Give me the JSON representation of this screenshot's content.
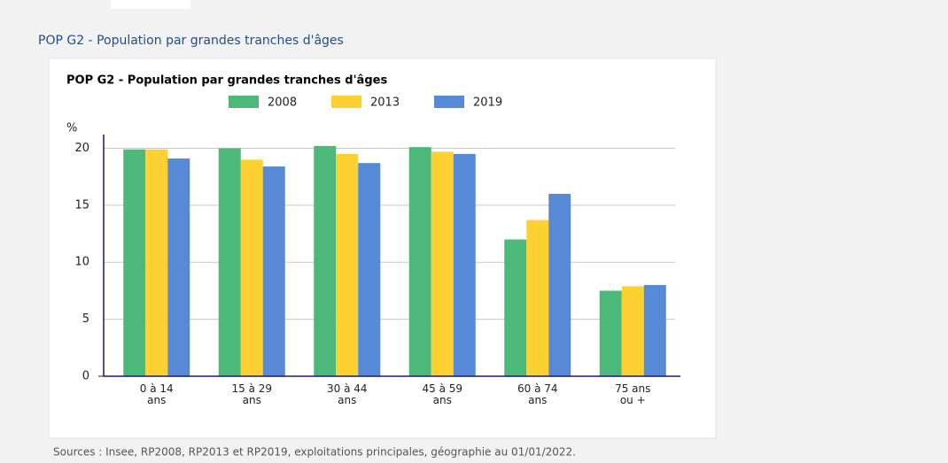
{
  "section_title": "POP G2 - Population par grandes tranches d'âges",
  "source": "Sources : Insee, RP2008, RP2013 et RP2019, exploitations principales, géographie au 01/01/2022.",
  "chart_data": {
    "type": "bar",
    "title": "POP G2 - Population par grandes tranches d'âges",
    "y_label": "%",
    "categories": [
      [
        "0 à 14",
        "ans"
      ],
      [
        "15 à 29",
        "ans"
      ],
      [
        "30 à 44",
        "ans"
      ],
      [
        "45 à 59",
        "ans"
      ],
      [
        "60 à 74",
        "ans"
      ],
      [
        "75 ans",
        "ou +"
      ]
    ],
    "series": [
      {
        "name": "2008",
        "color": "#4cb87a",
        "values": [
          19.9,
          20.0,
          20.2,
          20.1,
          12.0,
          7.5
        ]
      },
      {
        "name": "2013",
        "color": "#fdd132",
        "values": [
          19.9,
          19.0,
          19.5,
          19.7,
          13.7,
          7.9
        ]
      },
      {
        "name": "2019",
        "color": "#5689d6",
        "values": [
          19.1,
          18.4,
          18.7,
          19.5,
          16.0,
          8.0
        ]
      }
    ],
    "ylim": [
      0,
      21.2
    ],
    "yticks": [
      0,
      5,
      10,
      15,
      20
    ],
    "grid": true
  }
}
